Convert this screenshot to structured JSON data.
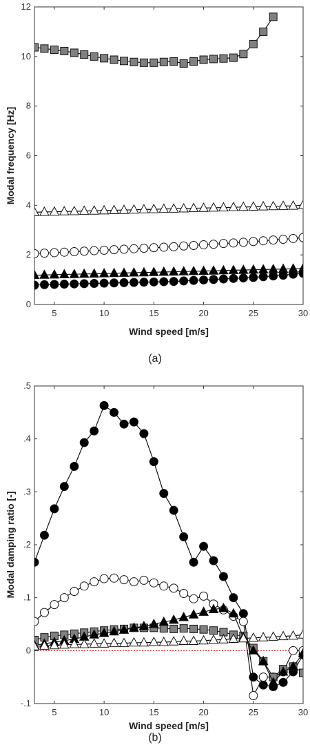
{
  "chart_data": [
    {
      "type": "line",
      "caption": "(a)",
      "xlabel": "Wind speed [m/s]",
      "ylabel": "Modal frequency [Hz]",
      "xlim": [
        3,
        30
      ],
      "ylim": [
        0,
        12
      ],
      "xticks": [
        5,
        10,
        15,
        20,
        25,
        30
      ],
      "yticks": [
        0,
        2,
        4,
        6,
        8,
        10,
        12
      ],
      "grid": false,
      "x": [
        3,
        4,
        5,
        6,
        7,
        8,
        9,
        10,
        11,
        12,
        13,
        14,
        15,
        16,
        17,
        18,
        19,
        20,
        21,
        22,
        23,
        24,
        25,
        26,
        27,
        28,
        29,
        30
      ],
      "series": [
        {
          "marker": "square",
          "fill": "#808080",
          "values": [
            10.37,
            10.32,
            10.27,
            10.22,
            10.15,
            10.08,
            10.0,
            9.93,
            9.87,
            9.82,
            9.78,
            9.75,
            9.75,
            9.78,
            9.8,
            9.72,
            9.8,
            9.87,
            9.9,
            9.92,
            9.95,
            10.1,
            10.5,
            11.0,
            11.6,
            null,
            null,
            null
          ]
        },
        {
          "marker": "triangle",
          "fill": "#ffffff",
          "values": [
            3.72,
            3.73,
            3.74,
            3.75,
            3.76,
            3.77,
            3.78,
            3.79,
            3.8,
            3.81,
            3.82,
            3.83,
            3.84,
            3.85,
            3.86,
            3.87,
            3.88,
            3.89,
            3.9,
            3.91,
            3.92,
            3.93,
            3.94,
            3.95,
            3.96,
            3.97,
            3.98,
            4.0
          ]
        },
        {
          "marker": "circle",
          "fill": "#ffffff",
          "values": [
            2.05,
            2.07,
            2.09,
            2.11,
            2.13,
            2.15,
            2.17,
            2.19,
            2.21,
            2.23,
            2.25,
            2.27,
            2.29,
            2.31,
            2.33,
            2.36,
            2.38,
            2.41,
            2.43,
            2.46,
            2.48,
            2.51,
            2.54,
            2.57,
            2.6,
            2.63,
            2.66,
            2.7
          ]
        },
        {
          "marker": "triangle",
          "fill": "#000000",
          "values": [
            1.18,
            1.19,
            1.2,
            1.21,
            1.22,
            1.23,
            1.24,
            1.25,
            1.26,
            1.27,
            1.28,
            1.29,
            1.3,
            1.31,
            1.32,
            1.33,
            1.34,
            1.35,
            1.36,
            1.37,
            1.38,
            1.39,
            1.4,
            1.41,
            1.42,
            1.43,
            1.44,
            1.45
          ]
        },
        {
          "marker": "circle",
          "fill": "#000000",
          "values": [
            0.78,
            0.8,
            0.81,
            0.82,
            0.83,
            0.84,
            0.85,
            0.86,
            0.87,
            0.88,
            0.89,
            0.9,
            0.91,
            0.92,
            0.93,
            0.95,
            0.97,
            0.99,
            1.01,
            1.03,
            1.05,
            1.07,
            1.09,
            1.12,
            1.15,
            1.18,
            1.22,
            1.26
          ]
        }
      ]
    },
    {
      "type": "line",
      "caption": "(b)",
      "xlabel": "Wind speed [m/s]",
      "ylabel": "Modal damping ratio [-]",
      "xlim": [
        3,
        30
      ],
      "ylim": [
        -0.1,
        0.5
      ],
      "xticks": [
        5,
        10,
        15,
        20,
        25,
        30
      ],
      "yticks": [
        -0.1,
        0,
        0.1,
        0.2,
        0.3,
        0.4,
        0.5
      ],
      "grid": false,
      "reference_line": {
        "y": 0,
        "color": "#cc0000",
        "style": "dotted"
      },
      "x": [
        3,
        4,
        5,
        6,
        7,
        8,
        9,
        10,
        11,
        12,
        13,
        14,
        15,
        16,
        17,
        18,
        19,
        20,
        21,
        22,
        23,
        24,
        25,
        26,
        27,
        28,
        29,
        30
      ],
      "series": [
        {
          "marker": "circle",
          "fill": "#000000",
          "values": [
            0.167,
            0.218,
            0.268,
            0.31,
            0.348,
            0.393,
            0.415,
            0.463,
            0.45,
            0.428,
            0.432,
            0.41,
            0.357,
            0.297,
            0.265,
            0.215,
            0.167,
            0.197,
            0.17,
            0.14,
            0.1,
            0.07,
            -0.05,
            -0.065,
            -0.068,
            -0.06,
            -0.04,
            -0.008
          ]
        },
        {
          "marker": "circle",
          "fill": "#ffffff",
          "values": [
            0.055,
            0.072,
            0.087,
            0.1,
            0.112,
            0.122,
            0.13,
            0.136,
            0.137,
            0.134,
            0.13,
            0.133,
            0.128,
            0.122,
            0.118,
            0.108,
            0.098,
            0.103,
            0.088,
            0.077,
            0.065,
            0.055,
            -0.085,
            -0.05,
            -0.05,
            -0.04,
            0.0,
            0.0
          ]
        },
        {
          "marker": "square",
          "fill": "#808080",
          "values": [
            0.02,
            0.025,
            0.028,
            0.03,
            0.032,
            0.034,
            0.036,
            0.038,
            0.04,
            0.041,
            0.043,
            0.043,
            0.043,
            0.042,
            0.041,
            0.042,
            0.041,
            0.04,
            0.038,
            0.035,
            0.03,
            0.028,
            0.005,
            -0.02,
            -0.05,
            -0.035,
            -0.03,
            -0.042
          ]
        },
        {
          "marker": "triangle",
          "fill": "#000000",
          "values": [
            0.01,
            0.013,
            0.016,
            0.019,
            0.022,
            0.026,
            0.03,
            0.033,
            0.036,
            0.039,
            0.043,
            0.046,
            0.05,
            0.054,
            0.058,
            0.063,
            0.068,
            0.073,
            0.078,
            0.08,
            0.07,
            0.025,
            0.0,
            -0.02,
            -0.06,
            -0.04,
            -0.03,
            -0.005
          ]
        },
        {
          "marker": "triangle",
          "fill": "#ffffff",
          "values": [
            0.008,
            0.009,
            0.01,
            0.011,
            0.012,
            0.012,
            0.013,
            0.013,
            0.014,
            0.014,
            0.015,
            0.015,
            0.016,
            0.016,
            0.017,
            0.018,
            0.018,
            0.019,
            0.02,
            0.021,
            0.022,
            0.023,
            0.024,
            0.025,
            0.026,
            0.027,
            0.028,
            0.03
          ]
        }
      ]
    }
  ]
}
